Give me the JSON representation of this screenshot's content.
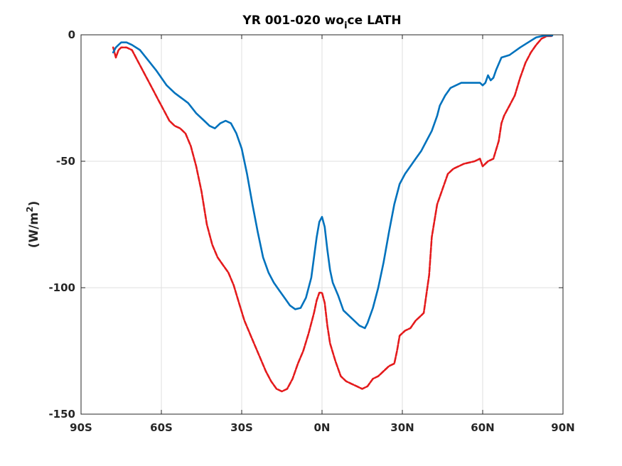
{
  "chart_data": {
    "type": "line",
    "title": {
      "prefix": "YR 001-020 wo",
      "subscript": "i",
      "suffix": "ce LATH"
    },
    "ylabel": {
      "prefix": "(W/m",
      "superscript": "2",
      "suffix": ")"
    },
    "xlabel": "",
    "xlim": [
      -90,
      90
    ],
    "ylim": [
      -150,
      0
    ],
    "grid": true,
    "x_ticks": [
      {
        "value": -90,
        "label": "90S"
      },
      {
        "value": -60,
        "label": "60S"
      },
      {
        "value": -30,
        "label": "30S"
      },
      {
        "value": 0,
        "label": "0N"
      },
      {
        "value": 30,
        "label": "30N"
      },
      {
        "value": 60,
        "label": "60N"
      },
      {
        "value": 90,
        "label": "90N"
      }
    ],
    "y_ticks": [
      {
        "value": 0,
        "label": "0"
      },
      {
        "value": -50,
        "label": "-50"
      },
      {
        "value": -100,
        "label": "-100"
      },
      {
        "value": -150,
        "label": "-150"
      }
    ],
    "series": [
      {
        "color": "#0072bd",
        "style": "solid",
        "points": [
          [
            -78,
            -7
          ],
          [
            -77,
            -5
          ],
          [
            -76,
            -4
          ],
          [
            -75,
            -3
          ],
          [
            -73,
            -3
          ],
          [
            -71,
            -4
          ],
          [
            -68,
            -6
          ],
          [
            -65,
            -10
          ],
          [
            -62,
            -14
          ],
          [
            -58,
            -20
          ],
          [
            -55,
            -23
          ],
          [
            -50,
            -27
          ],
          [
            -47,
            -31
          ],
          [
            -44,
            -34
          ],
          [
            -42,
            -36
          ],
          [
            -40,
            -37
          ],
          [
            -38,
            -35
          ],
          [
            -36,
            -34
          ],
          [
            -34,
            -35
          ],
          [
            -32,
            -39
          ],
          [
            -30,
            -45
          ],
          [
            -28,
            -55
          ],
          [
            -26,
            -67
          ],
          [
            -24,
            -78
          ],
          [
            -22,
            -88
          ],
          [
            -20,
            -94
          ],
          [
            -18,
            -98
          ],
          [
            -16,
            -101
          ],
          [
            -14,
            -104
          ],
          [
            -12,
            -107
          ],
          [
            -10,
            -108.5
          ],
          [
            -8,
            -108
          ],
          [
            -6,
            -104
          ],
          [
            -4,
            -96
          ],
          [
            -3,
            -88
          ],
          [
            -2,
            -80
          ],
          [
            -1,
            -74
          ],
          [
            0,
            -72
          ],
          [
            1,
            -76
          ],
          [
            2,
            -85
          ],
          [
            3,
            -93
          ],
          [
            4,
            -98
          ],
          [
            6,
            -103
          ],
          [
            8,
            -109
          ],
          [
            10,
            -111
          ],
          [
            12,
            -113
          ],
          [
            14,
            -115
          ],
          [
            16,
            -116
          ],
          [
            17,
            -114
          ],
          [
            19,
            -108
          ],
          [
            21,
            -100
          ],
          [
            23,
            -90
          ],
          [
            25,
            -78
          ],
          [
            27,
            -67
          ],
          [
            29,
            -59
          ],
          [
            31,
            -55
          ],
          [
            33,
            -52
          ],
          [
            35,
            -49
          ],
          [
            37,
            -46
          ],
          [
            39,
            -42
          ],
          [
            41,
            -38
          ],
          [
            43,
            -32
          ],
          [
            44,
            -28
          ],
          [
            46,
            -24
          ],
          [
            48,
            -21
          ],
          [
            52,
            -19
          ],
          [
            56,
            -19
          ],
          [
            59,
            -19
          ],
          [
            60,
            -20
          ],
          [
            61,
            -19
          ],
          [
            62,
            -16
          ],
          [
            63,
            -18
          ],
          [
            64,
            -17
          ],
          [
            65,
            -14
          ],
          [
            67,
            -9
          ],
          [
            70,
            -8
          ],
          [
            74,
            -5
          ],
          [
            77,
            -3
          ],
          [
            80,
            -1
          ],
          [
            83,
            -0.3
          ],
          [
            86,
            -0.3
          ]
        ]
      },
      {
        "color": "#e41a1c",
        "style": "dashed",
        "points": [
          [
            -78,
            -5
          ],
          [
            -77,
            -9
          ],
          [
            -76,
            -6
          ],
          [
            -75,
            -5
          ],
          [
            -73,
            -5
          ],
          [
            -71,
            -6
          ],
          [
            -69,
            -10
          ],
          [
            -67,
            -14
          ],
          [
            -65,
            -18
          ],
          [
            -63,
            -22
          ],
          [
            -61,
            -26
          ],
          [
            -59,
            -30
          ],
          [
            -57,
            -34
          ],
          [
            -55,
            -36
          ],
          [
            -53,
            -37
          ],
          [
            -51,
            -39
          ],
          [
            -49,
            -44
          ],
          [
            -47,
            -52
          ],
          [
            -45,
            -62
          ],
          [
            -43,
            -75
          ],
          [
            -41,
            -83
          ],
          [
            -39,
            -88
          ],
          [
            -37,
            -91
          ],
          [
            -35,
            -94
          ],
          [
            -33,
            -99
          ],
          [
            -31,
            -106
          ],
          [
            -29,
            -113
          ],
          [
            -27,
            -118
          ],
          [
            -25,
            -123
          ],
          [
            -23,
            -128
          ],
          [
            -21,
            -133
          ],
          [
            -19,
            -137
          ],
          [
            -17,
            -140
          ],
          [
            -15,
            -141
          ],
          [
            -13,
            -140
          ],
          [
            -11,
            -136
          ],
          [
            -9,
            -130
          ],
          [
            -7,
            -125
          ],
          [
            -5,
            -118
          ],
          [
            -3,
            -110
          ],
          [
            -2,
            -105
          ],
          [
            -1,
            -102
          ],
          [
            0,
            -102
          ],
          [
            1,
            -106
          ],
          [
            2,
            -115
          ],
          [
            3,
            -122
          ],
          [
            5,
            -129
          ],
          [
            7,
            -135
          ],
          [
            9,
            -137
          ],
          [
            11,
            -138
          ],
          [
            13,
            -139
          ],
          [
            15,
            -140
          ],
          [
            17,
            -139
          ],
          [
            19,
            -136
          ],
          [
            21,
            -135
          ],
          [
            23,
            -133
          ],
          [
            25,
            -131
          ],
          [
            27,
            -130
          ],
          [
            28,
            -125
          ],
          [
            29,
            -119
          ],
          [
            31,
            -117
          ],
          [
            33,
            -116
          ],
          [
            35,
            -113
          ],
          [
            37,
            -111
          ],
          [
            38,
            -110
          ],
          [
            40,
            -95
          ],
          [
            41,
            -80
          ],
          [
            43,
            -67
          ],
          [
            45,
            -61
          ],
          [
            47,
            -55
          ],
          [
            49,
            -53
          ],
          [
            53,
            -51
          ],
          [
            57,
            -50
          ],
          [
            59,
            -49
          ],
          [
            60,
            -52
          ],
          [
            62,
            -50
          ],
          [
            64,
            -49
          ],
          [
            66,
            -42
          ],
          [
            67,
            -35
          ],
          [
            68,
            -32
          ],
          [
            70,
            -28
          ],
          [
            72,
            -24
          ],
          [
            74,
            -17
          ],
          [
            76,
            -11
          ],
          [
            78,
            -7
          ],
          [
            80,
            -4
          ],
          [
            82,
            -1.5
          ],
          [
            84,
            -0.5
          ],
          [
            86,
            -0.5
          ]
        ]
      }
    ]
  }
}
